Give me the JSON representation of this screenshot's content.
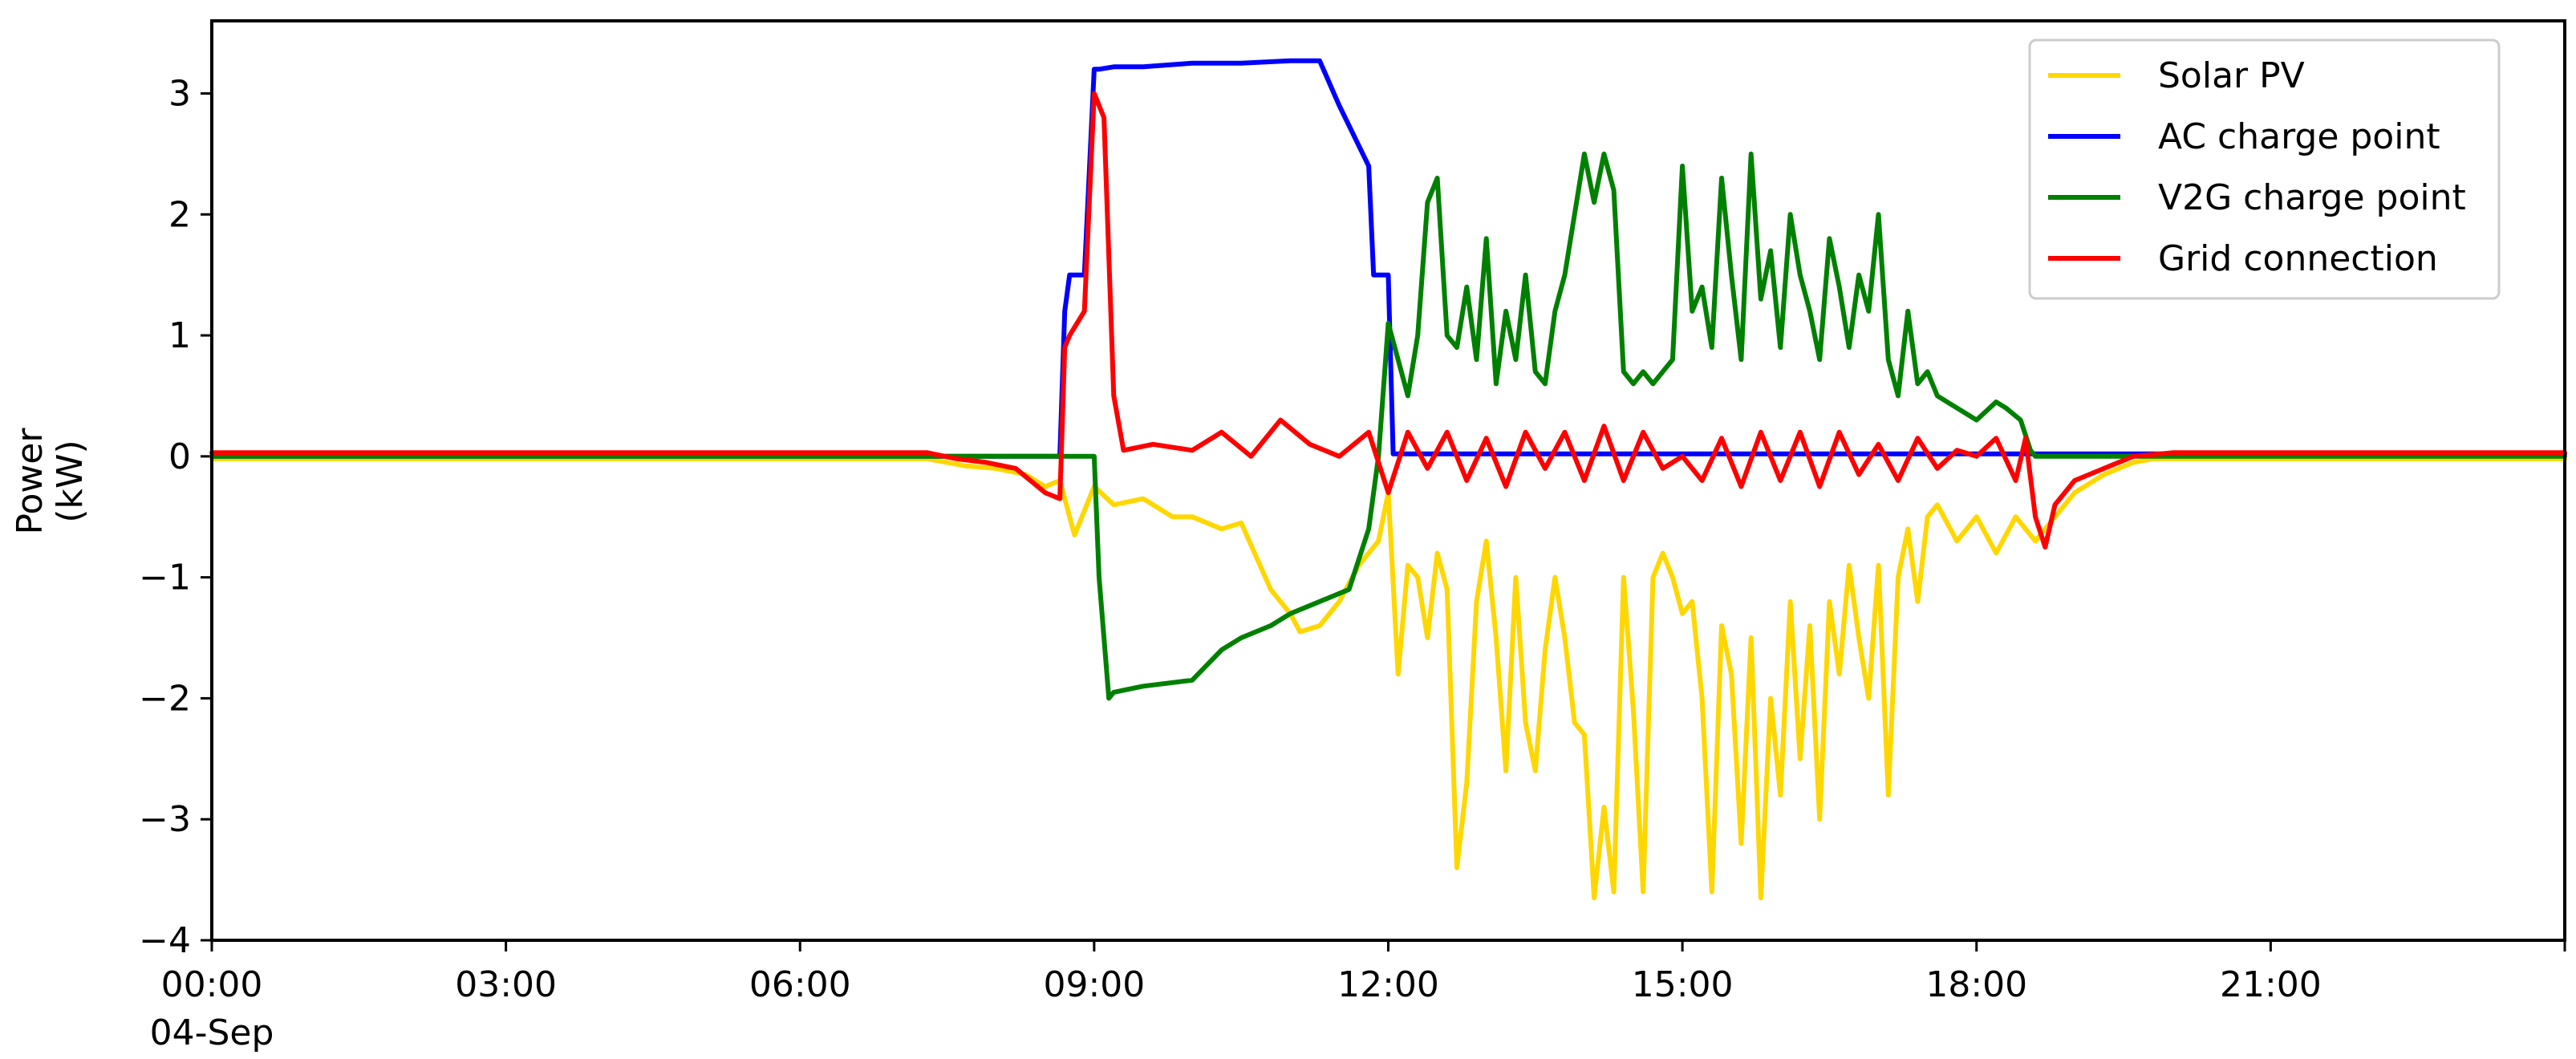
{
  "chart_data": {
    "type": "line",
    "ylabel_line1": "Power",
    "ylabel_line2": "(kW)",
    "xlim": [
      0,
      24
    ],
    "ylim": [
      -4,
      3.6
    ],
    "y_ticks": [
      -4,
      -3,
      -2,
      -1,
      0,
      1,
      2,
      3
    ],
    "y_tick_labels": [
      "−4",
      "−3",
      "−2",
      "−1",
      "0",
      "1",
      "2",
      "3"
    ],
    "x_ticks": [
      0,
      3,
      6,
      9,
      12,
      15,
      18,
      21,
      24
    ],
    "x_tick_labels": [
      "00:00",
      "03:00",
      "06:00",
      "09:00",
      "12:00",
      "15:00",
      "18:00",
      "21:00",
      ""
    ],
    "x_tick_date": "04-Sep",
    "legend_position": "top-right",
    "legend": [
      "Solar PV",
      "AC charge point",
      "V2G charge point",
      "Grid connection"
    ],
    "series": [
      {
        "name": "Solar PV",
        "color": "#FFD700",
        "x": [
          0,
          7.3,
          7.5,
          7.7,
          8.0,
          8.3,
          8.5,
          8.65,
          8.8,
          9.0,
          9.2,
          9.5,
          9.8,
          10.0,
          10.3,
          10.5,
          10.8,
          11.0,
          11.1,
          11.3,
          11.5,
          11.7,
          11.9,
          12.0,
          12.1,
          12.2,
          12.3,
          12.4,
          12.5,
          12.6,
          12.7,
          12.8,
          12.9,
          13.0,
          13.1,
          13.2,
          13.3,
          13.4,
          13.5,
          13.6,
          13.7,
          13.8,
          13.9,
          14.0,
          14.1,
          14.2,
          14.3,
          14.4,
          14.5,
          14.6,
          14.7,
          14.8,
          14.9,
          15.0,
          15.1,
          15.2,
          15.3,
          15.4,
          15.5,
          15.6,
          15.7,
          15.8,
          15.9,
          16.0,
          16.1,
          16.2,
          16.3,
          16.4,
          16.5,
          16.6,
          16.7,
          16.8,
          16.9,
          17.0,
          17.1,
          17.2,
          17.3,
          17.4,
          17.5,
          17.6,
          17.8,
          18.0,
          18.2,
          18.4,
          18.6,
          18.8,
          19.0,
          19.3,
          19.6,
          19.8,
          20.0,
          24
        ],
        "values": [
          -0.02,
          -0.02,
          -0.05,
          -0.08,
          -0.1,
          -0.15,
          -0.25,
          -0.2,
          -0.65,
          -0.25,
          -0.4,
          -0.35,
          -0.5,
          -0.5,
          -0.6,
          -0.55,
          -1.1,
          -1.3,
          -1.45,
          -1.4,
          -1.2,
          -0.9,
          -0.7,
          -0.3,
          -1.8,
          -0.9,
          -1.0,
          -1.5,
          -0.8,
          -1.1,
          -3.4,
          -2.7,
          -1.2,
          -0.7,
          -1.5,
          -2.6,
          -1.0,
          -2.2,
          -2.6,
          -1.6,
          -1.0,
          -1.5,
          -2.2,
          -2.3,
          -3.65,
          -2.9,
          -3.6,
          -1.0,
          -2.1,
          -3.6,
          -1.0,
          -0.8,
          -1.0,
          -1.3,
          -1.2,
          -2.0,
          -3.6,
          -1.4,
          -1.8,
          -3.2,
          -1.5,
          -3.65,
          -2.0,
          -2.8,
          -1.2,
          -2.5,
          -1.4,
          -3.0,
          -1.2,
          -1.8,
          -0.9,
          -1.5,
          -2.0,
          -0.9,
          -2.8,
          -1.0,
          -0.6,
          -1.2,
          -0.5,
          -0.4,
          -0.7,
          -0.5,
          -0.8,
          -0.5,
          -0.7,
          -0.5,
          -0.3,
          -0.15,
          -0.05,
          -0.02,
          -0.02,
          -0.02
        ]
      },
      {
        "name": "AC charge point",
        "color": "#0000FF",
        "x": [
          0,
          8.65,
          8.7,
          8.75,
          8.9,
          9.0,
          9.05,
          9.2,
          9.5,
          10.0,
          10.5,
          11.0,
          11.3,
          11.5,
          11.8,
          11.85,
          12.0,
          12.05,
          24
        ],
        "values": [
          0,
          0,
          1.2,
          1.5,
          1.5,
          3.2,
          3.2,
          3.22,
          3.22,
          3.25,
          3.25,
          3.27,
          3.27,
          2.9,
          2.4,
          1.5,
          1.5,
          0.02,
          0.02
        ]
      },
      {
        "name": "V2G charge point",
        "color": "#008000",
        "x": [
          0,
          9.0,
          9.05,
          9.15,
          9.2,
          9.5,
          10.0,
          10.3,
          10.5,
          10.8,
          11.0,
          11.3,
          11.6,
          11.8,
          11.9,
          12.0,
          12.1,
          12.2,
          12.3,
          12.4,
          12.5,
          12.6,
          12.7,
          12.8,
          12.9,
          13.0,
          13.1,
          13.2,
          13.3,
          13.4,
          13.5,
          13.6,
          13.7,
          13.8,
          13.9,
          14.0,
          14.1,
          14.2,
          14.3,
          14.4,
          14.5,
          14.6,
          14.7,
          14.8,
          14.9,
          15.0,
          15.1,
          15.2,
          15.3,
          15.4,
          15.5,
          15.6,
          15.7,
          15.8,
          15.9,
          16.0,
          16.1,
          16.2,
          16.3,
          16.4,
          16.5,
          16.6,
          16.7,
          16.8,
          16.9,
          17.0,
          17.1,
          17.2,
          17.3,
          17.4,
          17.5,
          17.6,
          17.8,
          18.0,
          18.2,
          18.3,
          18.45,
          18.55,
          18.6,
          24
        ],
        "values": [
          0,
          0,
          -1.0,
          -2.0,
          -1.95,
          -1.9,
          -1.85,
          -1.6,
          -1.5,
          -1.4,
          -1.3,
          -1.2,
          -1.1,
          -0.6,
          0.0,
          1.1,
          0.8,
          0.5,
          1.0,
          2.1,
          2.3,
          1.0,
          0.9,
          1.4,
          0.8,
          1.8,
          0.6,
          1.2,
          0.8,
          1.5,
          0.7,
          0.6,
          1.2,
          1.5,
          2.0,
          2.5,
          2.1,
          2.5,
          2.2,
          0.7,
          0.6,
          0.7,
          0.6,
          0.7,
          0.8,
          2.4,
          1.2,
          1.4,
          0.9,
          2.3,
          1.5,
          0.8,
          2.5,
          1.3,
          1.7,
          0.9,
          2.0,
          1.5,
          1.2,
          0.8,
          1.8,
          1.4,
          0.9,
          1.5,
          1.2,
          2.0,
          0.8,
          0.5,
          1.2,
          0.6,
          0.7,
          0.5,
          0.4,
          0.3,
          0.45,
          0.4,
          0.3,
          0.05,
          0.0,
          0.0
        ]
      },
      {
        "name": "Grid connection",
        "color": "#FF0000",
        "x": [
          0,
          7.3,
          7.6,
          7.9,
          8.2,
          8.5,
          8.65,
          8.7,
          8.75,
          8.9,
          9.0,
          9.1,
          9.2,
          9.3,
          9.6,
          10.0,
          10.3,
          10.6,
          10.9,
          11.2,
          11.5,
          11.8,
          12.0,
          12.2,
          12.4,
          12.6,
          12.8,
          13.0,
          13.2,
          13.4,
          13.6,
          13.8,
          14.0,
          14.2,
          14.4,
          14.6,
          14.8,
          15.0,
          15.2,
          15.4,
          15.6,
          15.8,
          16.0,
          16.2,
          16.4,
          16.6,
          16.8,
          17.0,
          17.2,
          17.4,
          17.6,
          17.8,
          18.0,
          18.2,
          18.4,
          18.5,
          18.6,
          18.7,
          18.8,
          19.0,
          19.3,
          19.6,
          20.0,
          24
        ],
        "values": [
          0.03,
          0.03,
          -0.02,
          -0.05,
          -0.1,
          -0.3,
          -0.35,
          0.9,
          1.0,
          1.2,
          3.0,
          2.8,
          0.5,
          0.05,
          0.1,
          0.05,
          0.2,
          0.0,
          0.3,
          0.1,
          0.0,
          0.2,
          -0.3,
          0.2,
          -0.1,
          0.2,
          -0.2,
          0.15,
          -0.25,
          0.2,
          -0.1,
          0.2,
          -0.2,
          0.25,
          -0.2,
          0.2,
          -0.1,
          0.0,
          -0.2,
          0.15,
          -0.25,
          0.2,
          -0.2,
          0.2,
          -0.25,
          0.2,
          -0.15,
          0.1,
          -0.2,
          0.15,
          -0.1,
          0.05,
          0.0,
          0.15,
          -0.2,
          0.15,
          -0.5,
          -0.75,
          -0.4,
          -0.2,
          -0.1,
          0.0,
          0.03,
          0.03
        ]
      }
    ]
  }
}
